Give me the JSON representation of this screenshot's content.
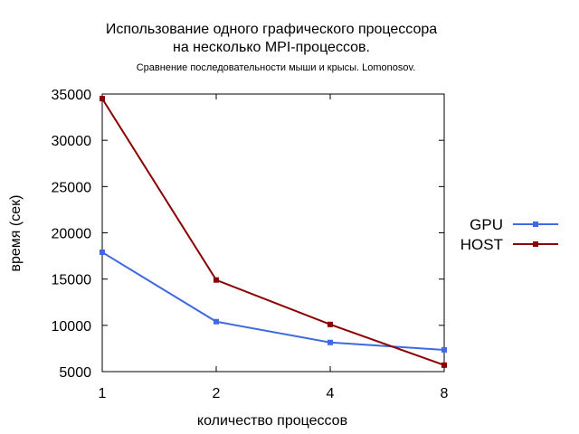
{
  "chart_data": {
    "type": "line",
    "title": [
      "Использование одного графического процессора",
      "на несколько MPI-процессов."
    ],
    "subtitle": "Сравнение последовательности мыши и крысы. Lomonosov.",
    "xlabel": "количество процессов",
    "ylabel": "время (сек)",
    "categories": [
      "1",
      "2",
      "4",
      "8"
    ],
    "ylim": [
      5000,
      35000
    ],
    "yticks": [
      "5000",
      "10000",
      "15000",
      "20000",
      "25000",
      "30000",
      "35000"
    ],
    "grid": false,
    "legend_position": "right",
    "series": [
      {
        "name": "GPU",
        "color": "#4169e1",
        "values": [
          17900,
          10400,
          8150,
          7350
        ]
      },
      {
        "name": "HOST",
        "color": "#8b0000",
        "values": [
          34500,
          14900,
          10100,
          5700
        ]
      }
    ]
  }
}
